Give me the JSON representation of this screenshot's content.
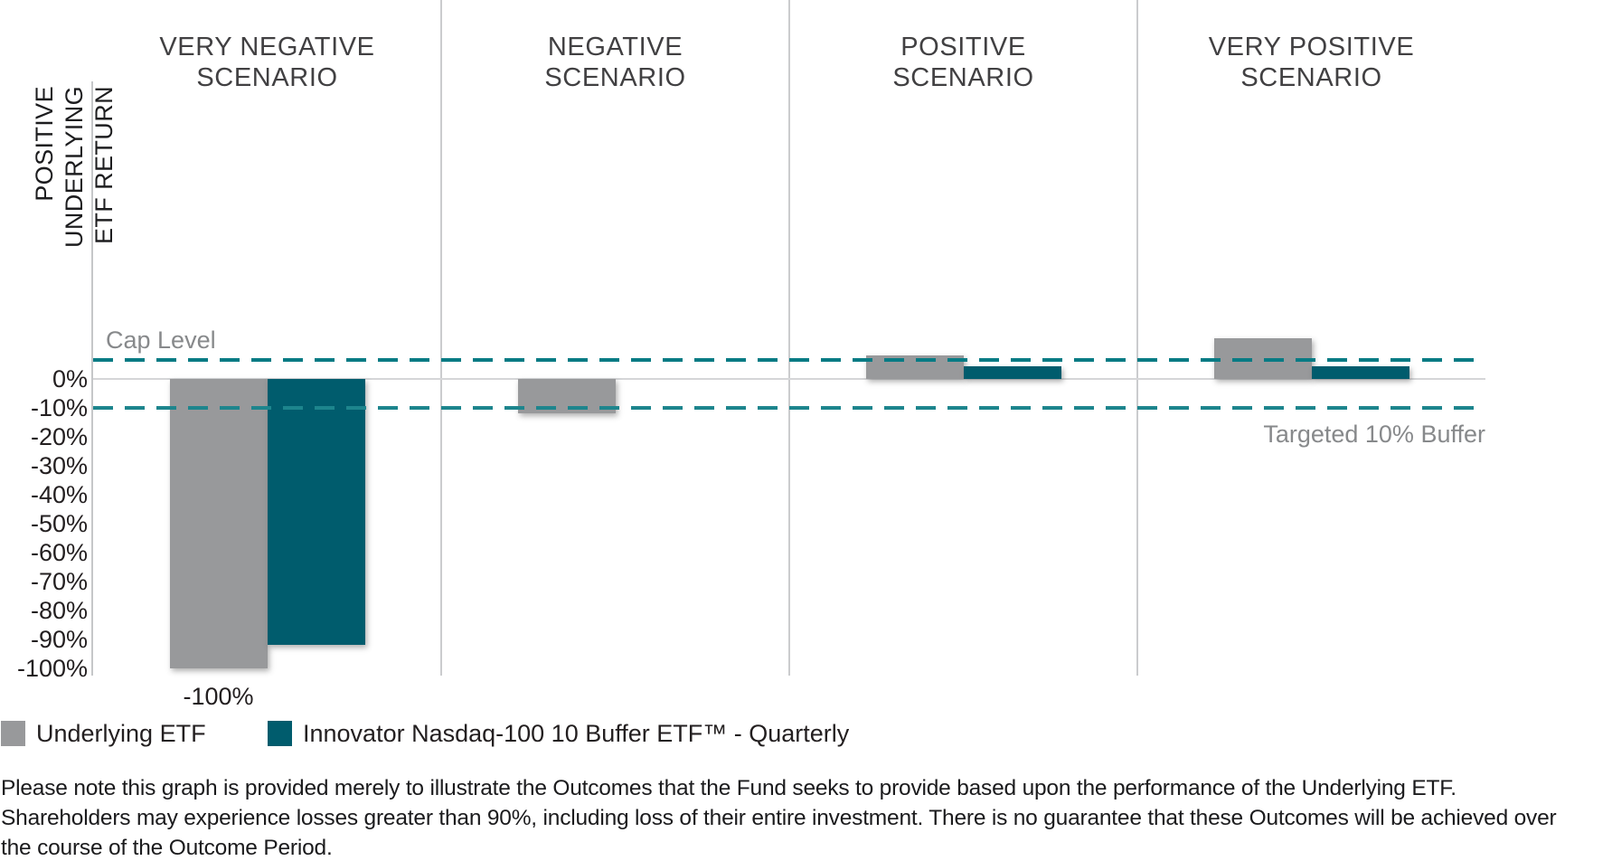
{
  "chart_data": {
    "type": "bar",
    "title": "",
    "categories": [
      "VERY NEGATIVE SCENARIO",
      "NEGATIVE SCENARIO",
      "POSITIVE SCENARIO",
      "VERY POSITIVE SCENARIO"
    ],
    "categories_lines": [
      [
        "VERY NEGATIVE",
        "SCENARIO"
      ],
      [
        "NEGATIVE",
        "SCENARIO"
      ],
      [
        "POSITIVE",
        "SCENARIO"
      ],
      [
        "VERY POSITIVE",
        "SCENARIO"
      ]
    ],
    "series": [
      {
        "name": "Underlying ETF",
        "color": "#98999b",
        "values": [
          -100,
          -12,
          8,
          14
        ]
      },
      {
        "name": "Innovator Nasdaq-100 10 Buffer ETF™ - Quarterly",
        "color": "#005c6d",
        "values": [
          -92,
          0,
          4.5,
          4.5
        ]
      }
    ],
    "y_axis": {
      "label": "POSITIVE UNDERLYING ETF RETURN",
      "label_lines": [
        "POSITIVE UNDERLYING",
        "ETF RETURN"
      ],
      "unit": "%",
      "ticks": [
        0,
        -10,
        -20,
        -30,
        -40,
        -50,
        -60,
        -70,
        -80,
        -90,
        -100
      ]
    },
    "reference_lines": [
      {
        "id": "cap",
        "label": "Cap Level",
        "value": 6.5,
        "color": "#077b84",
        "style": "dashed",
        "label_side": "left-above"
      },
      {
        "id": "buffer",
        "label": "Targeted 10% Buffer",
        "value": -10,
        "color": "#1d858d",
        "style": "dashed",
        "label_side": "right-below"
      }
    ],
    "annotations": [
      {
        "text": "-100%",
        "scenario": 0,
        "series": 0,
        "position": "below-bar"
      }
    ],
    "grid": "zero-line-only",
    "legend_position": "bottom-left"
  },
  "legend": {
    "items": [
      {
        "label": "Underlying ETF",
        "color": "#98999b"
      },
      {
        "label": "Innovator Nasdaq-100 10 Buffer ETF™ - Quarterly",
        "color": "#005c6d"
      }
    ]
  },
  "disclaimer": {
    "lines": [
      "Please note this graph is provided merely to illustrate the Outcomes that the Fund seeks to provide based upon the performance of the Underlying ETF.",
      "Shareholders may experience losses greater than 90%, including loss of their entire investment. There is no guarantee that these Outcomes will be achieved over",
      "the course of the Outcome Period."
    ]
  }
}
